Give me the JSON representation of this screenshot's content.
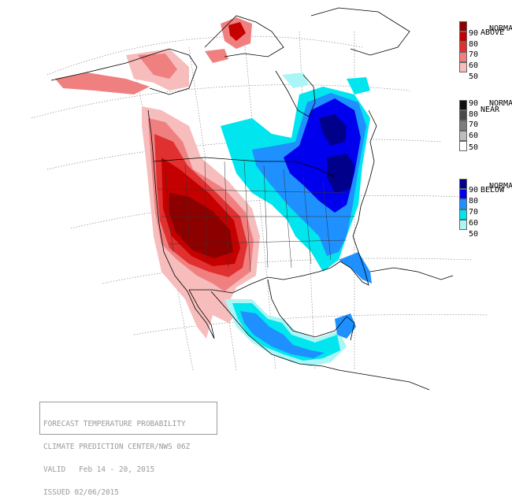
{
  "map": {
    "colors": {
      "above": [
        "#f7bcbc",
        "#f08080",
        "#e03030",
        "#c40000",
        "#8c0000"
      ],
      "near": [
        "#ffffff",
        "#bdbdbd",
        "#7d7d7d",
        "#4a4a4a",
        "#111111"
      ],
      "below": [
        "#aaf5f5",
        "#00e5ee",
        "#1e90ff",
        "#0000ee",
        "#00008b"
      ],
      "land": "#ffffff",
      "border": "#000000",
      "grid": "#8a8a8a"
    }
  },
  "legend": {
    "levels": [
      "90",
      "80",
      "70",
      "60",
      "50"
    ],
    "above_label": "ABOVE",
    "above_suffix": "NORMAL",
    "near_label": "NEAR",
    "near_suffix": "NORMAL",
    "below_label": "BELOW",
    "below_suffix": "NORMAL"
  },
  "info": {
    "line1": "FORECAST TEMPERATURE PROBABILITY",
    "line2": "CLIMATE PREDICTION CENTER/NWS 06Z",
    "line3": "VALID   Feb 14 - 20, 2015",
    "line4": "ISSUED 02/06/2015"
  }
}
